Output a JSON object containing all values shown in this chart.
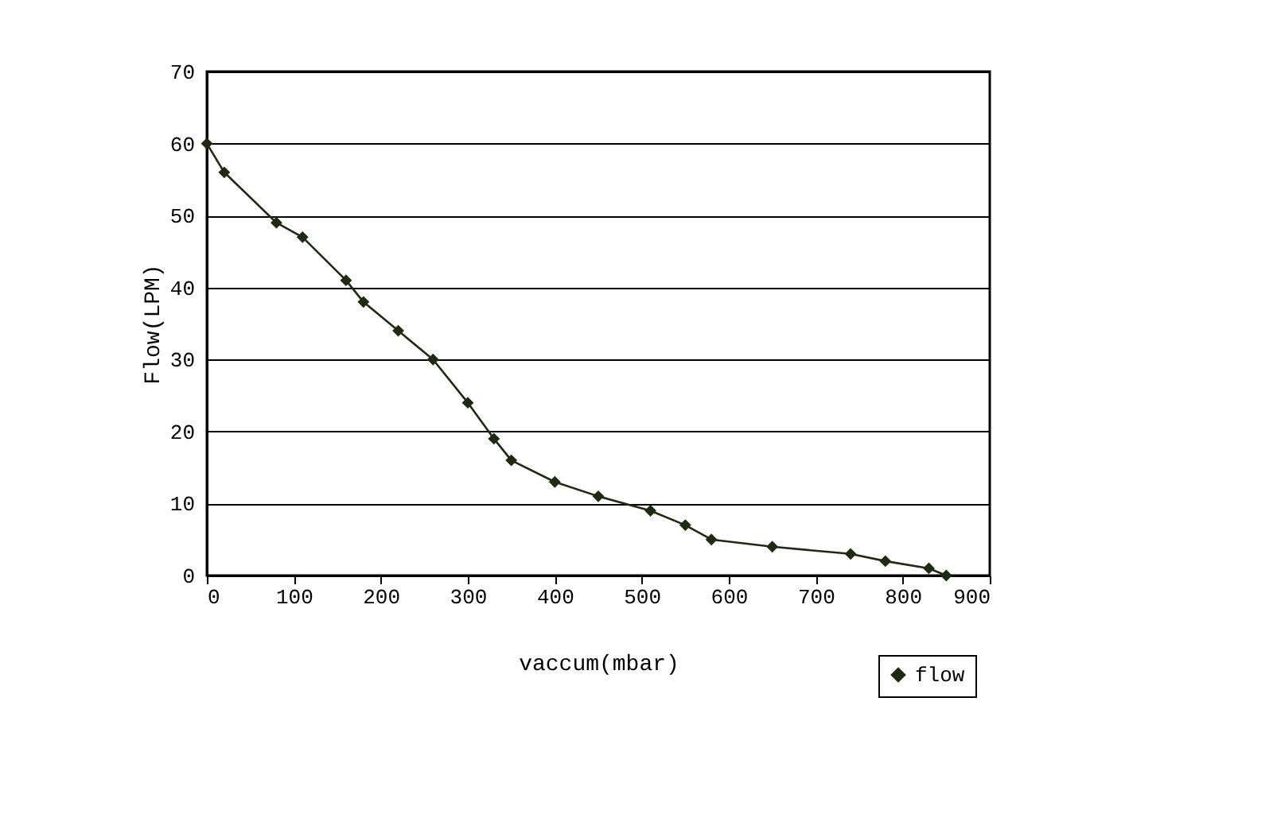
{
  "chart_data": {
    "type": "line",
    "xlabel": "vaccum(mbar)",
    "ylabel": "Flow(LPM)",
    "x": [
      0,
      20,
      80,
      110,
      160,
      180,
      220,
      260,
      300,
      330,
      350,
      400,
      450,
      510,
      550,
      580,
      650,
      740,
      780,
      830,
      850
    ],
    "series": [
      {
        "name": "flow",
        "color": "#1f2a12",
        "values": [
          60,
          56,
          49,
          47,
          41,
          38,
          34,
          30,
          24,
          19,
          16,
          13,
          11,
          9,
          7,
          5,
          4,
          3,
          2,
          1,
          0
        ]
      }
    ],
    "xlim": [
      0,
      900
    ],
    "xticks": [
      0,
      100,
      200,
      300,
      400,
      500,
      600,
      700,
      800,
      900
    ],
    "ylim": [
      0,
      70
    ],
    "yticks": [
      0,
      10,
      20,
      30,
      40,
      50,
      60,
      70
    ],
    "grid": "y",
    "legend": "bottom right",
    "marker": "diamond",
    "line_style": "solid"
  }
}
